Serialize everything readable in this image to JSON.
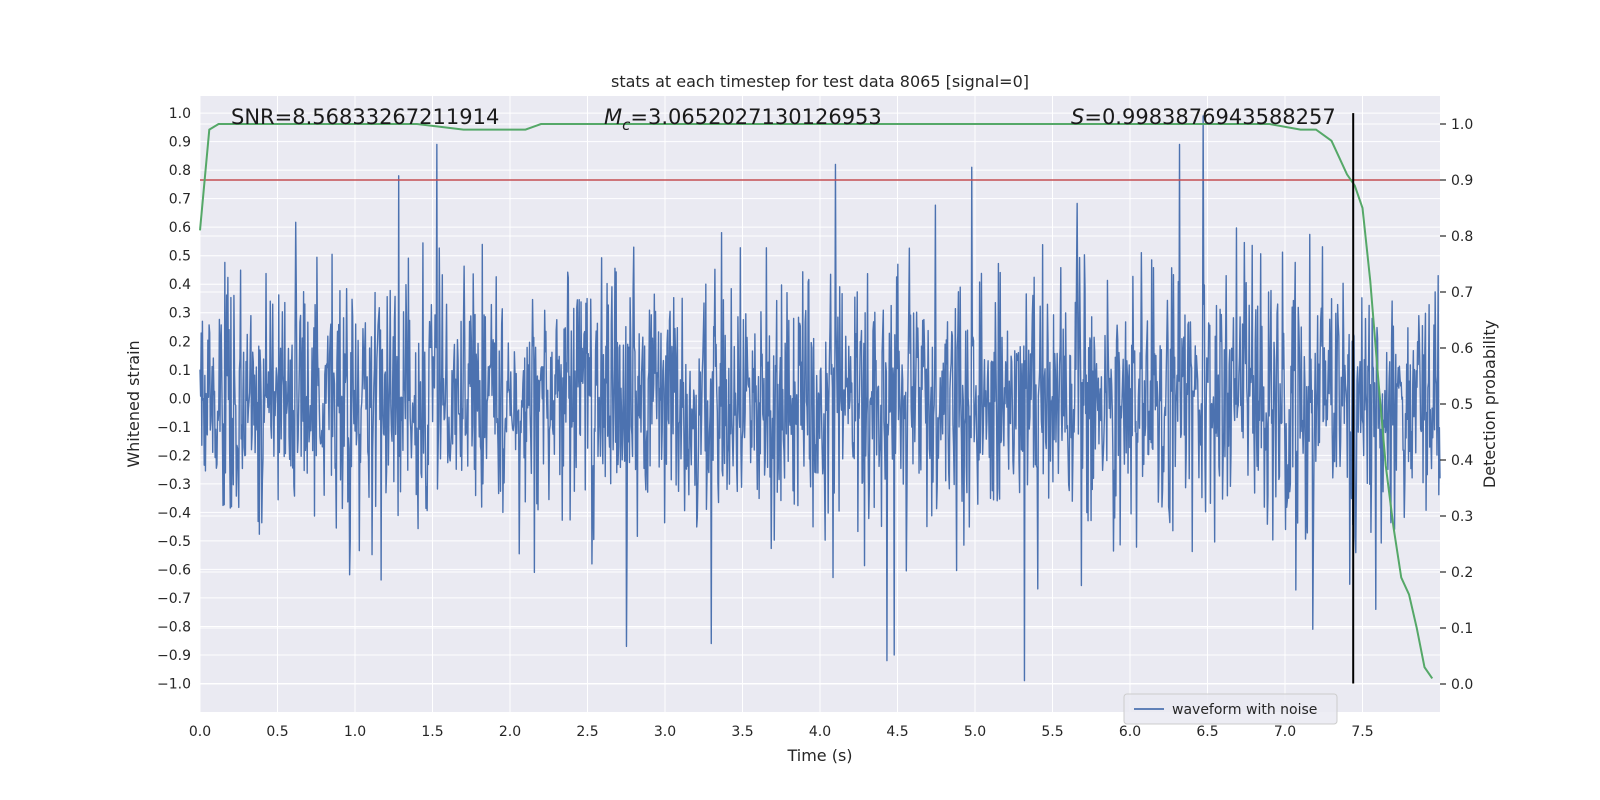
{
  "chart_data": {
    "type": "line",
    "title": "stats at each timestep for test data 8065 [signal=0]",
    "xlabel": "Time (s)",
    "ylabel": "Whitened strain",
    "y2label": "Detection probability",
    "xlim": [
      0.0,
      8.0
    ],
    "ylim": [
      -1.1,
      1.06
    ],
    "y2lim": [
      -0.05,
      1.05
    ],
    "xticks": [
      "0.0",
      "0.5",
      "1.0",
      "1.5",
      "2.0",
      "2.5",
      "3.0",
      "3.5",
      "4.0",
      "4.5",
      "5.0",
      "5.5",
      "6.0",
      "6.5",
      "7.0",
      "7.5"
    ],
    "xtick_values": [
      0.0,
      0.5,
      1.0,
      1.5,
      2.0,
      2.5,
      3.0,
      3.5,
      4.0,
      4.5,
      5.0,
      5.5,
      6.0,
      6.5,
      7.0,
      7.5
    ],
    "yticks": [
      "1.0",
      "0.9",
      "0.8",
      "0.7",
      "0.6",
      "0.5",
      "0.4",
      "0.3",
      "0.2",
      "0.1",
      "0.0",
      "−0.1",
      "−0.2",
      "−0.3",
      "−0.4",
      "−0.5",
      "−0.6",
      "−0.7",
      "−0.8",
      "−0.9",
      "−1.0"
    ],
    "ytick_values": [
      1.0,
      0.9,
      0.8,
      0.7,
      0.6,
      0.5,
      0.4,
      0.3,
      0.2,
      0.1,
      0.0,
      -0.1,
      -0.2,
      -0.3,
      -0.4,
      -0.5,
      -0.6,
      -0.7,
      -0.8,
      -0.9,
      -1.0
    ],
    "y2ticks": [
      "1.0",
      "0.9",
      "0.8",
      "0.7",
      "0.6",
      "0.5",
      "0.4",
      "0.3",
      "0.2",
      "0.1",
      "0.0"
    ],
    "y2tick_values": [
      1.0,
      0.9,
      0.8,
      0.7,
      0.6,
      0.5,
      0.4,
      0.3,
      0.2,
      0.1,
      0.0
    ],
    "annotations": {
      "snr": "SNR=8.56833267211914",
      "mc_symbol": "M",
      "mc_sub": "c",
      "mc_value": "=3.0652027130126953",
      "s_symbol": "S",
      "s_value": "=0.9983876943588257"
    },
    "waveform": {
      "name": "waveform with noise",
      "color": "#4c72b0",
      "t_start": 0.0,
      "t_end": 8.0,
      "samples": 2048,
      "seed": 8065,
      "approx_envelope": 0.55,
      "notable_peaks": [
        {
          "t": 1.53,
          "v": 0.89
        },
        {
          "t": 1.28,
          "v": 0.78
        },
        {
          "t": 4.1,
          "v": 0.82
        },
        {
          "t": 4.98,
          "v": 0.81
        },
        {
          "t": 6.32,
          "v": 0.89
        },
        {
          "t": 6.47,
          "v": 0.99
        },
        {
          "t": 5.32,
          "v": -0.99
        },
        {
          "t": 4.48,
          "v": -0.9
        },
        {
          "t": 4.43,
          "v": -0.92
        },
        {
          "t": 2.75,
          "v": -0.87
        },
        {
          "t": 3.3,
          "v": -0.86
        },
        {
          "t": 7.18,
          "v": -0.81
        }
      ]
    },
    "detection_probability": {
      "color": "#55a868",
      "x": [
        0.0,
        0.06,
        0.12,
        0.3,
        0.6,
        1.0,
        1.4,
        1.7,
        1.8,
        1.9,
        2.1,
        2.2,
        2.5,
        3.0,
        3.5,
        4.0,
        4.5,
        5.0,
        5.2,
        5.6,
        6.0,
        6.5,
        6.9,
        7.1,
        7.2,
        7.25,
        7.3,
        7.35,
        7.4,
        7.45,
        7.5,
        7.55,
        7.6,
        7.65,
        7.7,
        7.75,
        7.8,
        7.85,
        7.9,
        7.95
      ],
      "y": [
        0.81,
        0.99,
        1.0,
        1.0,
        1.0,
        1.0,
        1.0,
        0.99,
        0.99,
        0.99,
        0.99,
        1.0,
        1.0,
        1.0,
        1.0,
        1.0,
        1.0,
        1.0,
        1.0,
        1.0,
        1.0,
        1.0,
        1.0,
        0.99,
        0.99,
        0.98,
        0.97,
        0.94,
        0.91,
        0.89,
        0.85,
        0.72,
        0.55,
        0.39,
        0.28,
        0.19,
        0.16,
        0.1,
        0.03,
        0.01
      ]
    },
    "threshold": {
      "value": 0.9,
      "axis": "right",
      "color": "#c44e52"
    },
    "vertical_marker": {
      "x": 7.44,
      "color": "#000000",
      "y_from": -1.0,
      "y_to": 1.0
    },
    "legend": {
      "placement": "lower-right",
      "entries": [
        "waveform with noise"
      ]
    },
    "grid": true,
    "colors": {
      "background": "#eaeaf2",
      "grid": "#ffffff"
    }
  }
}
